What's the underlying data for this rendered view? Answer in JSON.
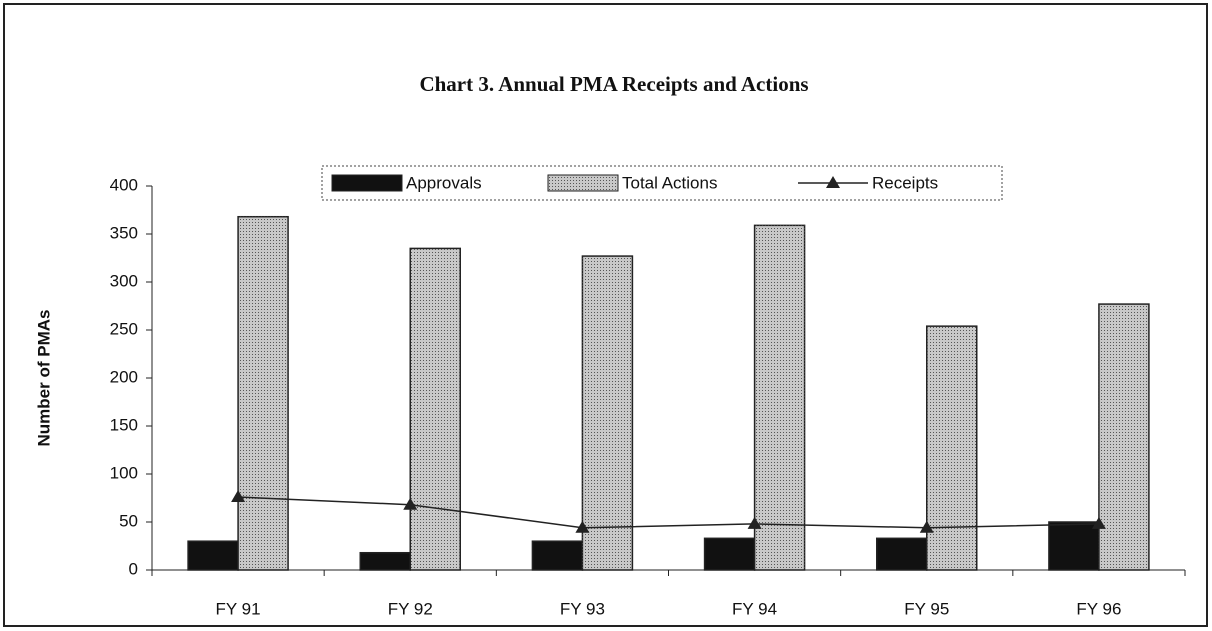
{
  "chart_data": {
    "type": "bar",
    "title": "Chart 3.  Annual PMA Receipts and Actions",
    "y_label": "Number of PMAs",
    "categories": [
      "FY 91",
      "FY 92",
      "FY 93",
      "FY 94",
      "FY 95",
      "FY 96"
    ],
    "series": [
      {
        "name": "Approvals",
        "type": "bar",
        "color": "#111111",
        "values": [
          30,
          18,
          30,
          33,
          33,
          50
        ]
      },
      {
        "name": "Total Actions",
        "type": "bar",
        "color": "#c8c8c8",
        "values": [
          368,
          335,
          327,
          359,
          254,
          277
        ]
      },
      {
        "name": "Receipts",
        "type": "line",
        "color": "#222222",
        "values": [
          76,
          68,
          44,
          48,
          44,
          48
        ]
      }
    ],
    "ylim": [
      0,
      400
    ],
    "yticks": [
      0,
      50,
      100,
      150,
      200,
      250,
      300,
      350,
      400
    ],
    "grid": false
  }
}
